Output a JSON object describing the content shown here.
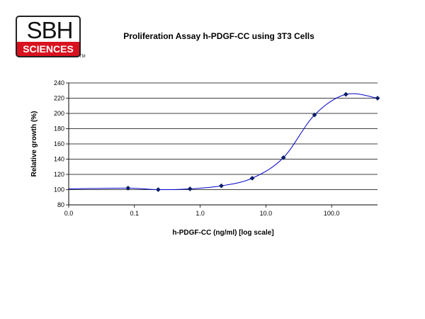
{
  "logo": {
    "top_text": "SBH",
    "bottom_text": "SCIENCES",
    "tm": "TM"
  },
  "chart_data": {
    "type": "line",
    "title": "Proliferation Assay h-PDGF-CC using 3T3 Cells",
    "xlabel": "h-PDGF-CC (ng/ml) [log scale]",
    "ylabel": "Relative growth (%)",
    "x_scale": "log",
    "xlim": [
      0.01,
      500
    ],
    "ylim": [
      80,
      240
    ],
    "x_tick_values": [
      0.01,
      0.1,
      1,
      10,
      100
    ],
    "x_tick_labels": [
      "0.0",
      "0.1",
      "1.0",
      "10.0",
      "100.0"
    ],
    "y_ticks": [
      80,
      100,
      120,
      140,
      160,
      180,
      200,
      220,
      240
    ],
    "grid": "horizontal",
    "curve": "smoothed",
    "marker": "diamond",
    "colors": {
      "line": "#0000cc",
      "marker": "#0b1f66",
      "grid": "#000000"
    },
    "series": [
      {
        "x": [
          0.08,
          0.23,
          0.7,
          2.1,
          6.2,
          18.5,
          55,
          165,
          500
        ],
        "y": [
          102,
          100,
          101,
          105,
          115,
          142,
          198,
          225,
          220
        ]
      }
    ],
    "curve_start": {
      "x": 0.01,
      "y": 101
    }
  }
}
